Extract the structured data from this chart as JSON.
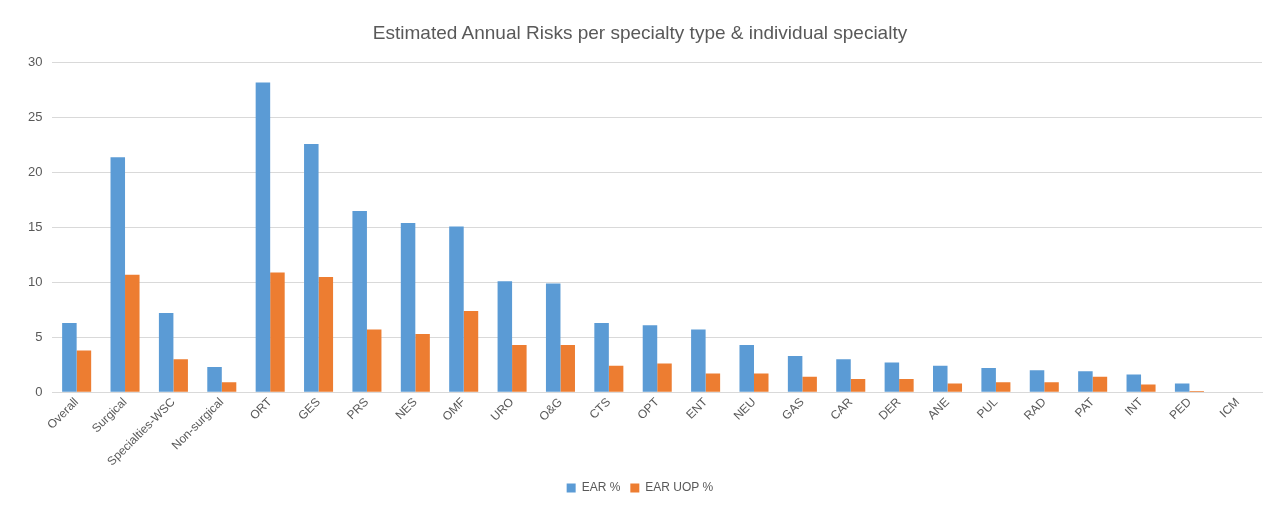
{
  "chart_data": {
    "type": "bar",
    "title": "Estimated Annual Risks per specialty type & individual specialty",
    "categories": [
      "Overall",
      "Surgical",
      "Specialties-WSC",
      "Non-surgical",
      "ORT",
      "GES",
      "PRS",
      "NES",
      "OMF",
      "URO",
      "O&G",
      "CTS",
      "OPT",
      "ENT",
      "NEU",
      "GAS",
      "CAR",
      "DER",
      "ANE",
      "PUL",
      "RAD",
      "PAT",
      "INT",
      "PED",
      "ICM"
    ],
    "series": [
      {
        "name": "EAR %",
        "color": "#5b9bd5",
        "values": [
          6.3,
          21.4,
          7.2,
          2.3,
          28.2,
          22.6,
          16.5,
          15.4,
          15.1,
          10.1,
          9.9,
          6.3,
          6.1,
          5.7,
          4.3,
          3.3,
          3.0,
          2.7,
          2.4,
          2.2,
          2.0,
          1.9,
          1.6,
          0.8,
          0
        ]
      },
      {
        "name": "EAR UOP %",
        "color": "#ed7d31",
        "values": [
          3.8,
          10.7,
          3.0,
          0.9,
          10.9,
          10.5,
          5.7,
          5.3,
          7.4,
          4.3,
          4.3,
          2.4,
          2.6,
          1.7,
          1.7,
          1.4,
          1.2,
          1.2,
          0.8,
          0.9,
          0.9,
          1.4,
          0.7,
          0.1,
          0
        ]
      }
    ],
    "ylim": [
      0,
      30
    ],
    "yticks": [
      0,
      5,
      10,
      15,
      20,
      25,
      30
    ],
    "grid": "y",
    "legend": "bottom"
  }
}
